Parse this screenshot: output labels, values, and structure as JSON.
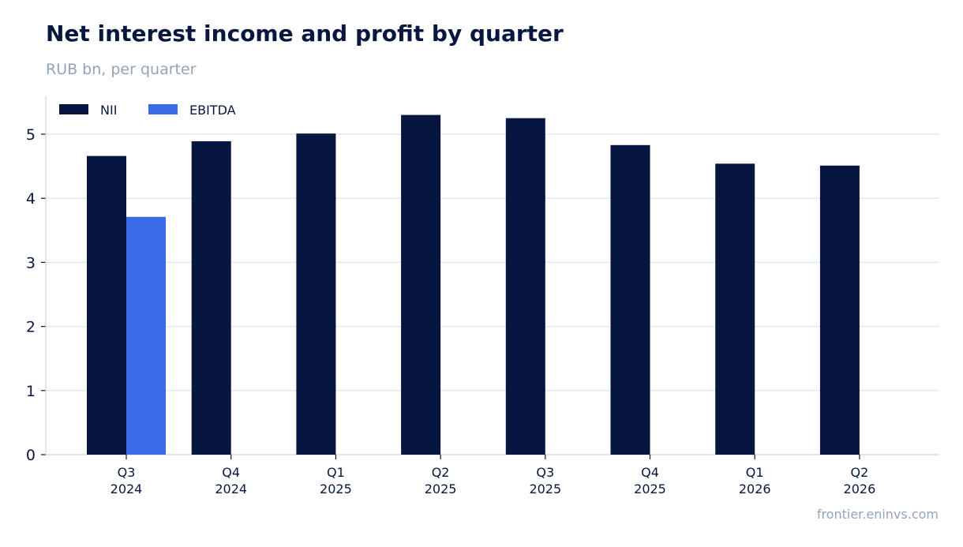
{
  "header": {
    "title": "Net interest income and profit by quarter",
    "subtitle": "RUB bn, per quarter"
  },
  "footer": {
    "source": "frontier.eninvs.com"
  },
  "colors": {
    "nii": "#061640",
    "ebitda": "#3a6ae6",
    "grid": "#e2e8f0",
    "axis": "#cbd5e1",
    "text": "#07173f",
    "muted": "#94a3b8"
  },
  "chart_data": {
    "type": "bar",
    "categories": [
      [
        "Q3",
        "2024"
      ],
      [
        "Q4",
        "2024"
      ],
      [
        "Q1",
        "2025"
      ],
      [
        "Q2",
        "2025"
      ],
      [
        "Q3",
        "2025"
      ],
      [
        "Q4",
        "2025"
      ],
      [
        "Q1",
        "2026"
      ],
      [
        "Q2",
        "2026"
      ]
    ],
    "series": [
      {
        "name": "NII",
        "values": [
          4.66,
          4.89,
          5.01,
          5.3,
          5.25,
          4.83,
          4.54,
          4.51
        ]
      },
      {
        "name": "EBITDA",
        "values": [
          3.71,
          null,
          null,
          null,
          null,
          null,
          null,
          null
        ]
      }
    ],
    "ylim": [
      0,
      5.5
    ],
    "yticks": [
      0,
      1,
      2,
      3,
      4,
      5
    ],
    "grid": true,
    "legend": "top-left"
  }
}
